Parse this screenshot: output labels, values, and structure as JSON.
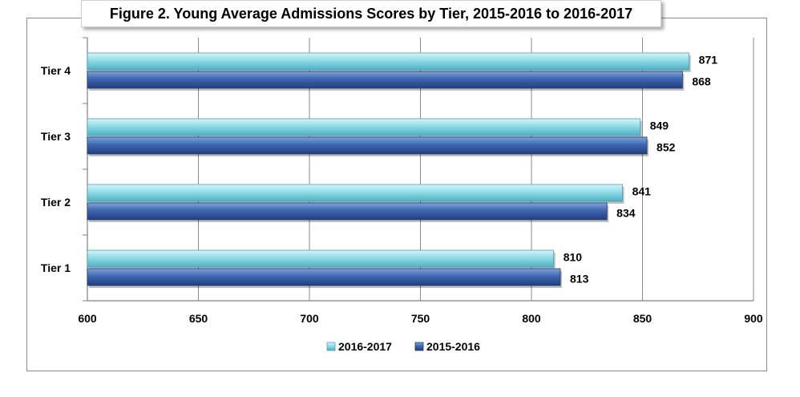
{
  "chart_data": {
    "type": "bar",
    "orientation": "horizontal",
    "title": "Figure 2. Young Average Admissions Scores by Tier, 2015-2016 to 2016-2017",
    "xlabel": "",
    "ylabel": "",
    "categories": [
      "Tier 4",
      "Tier 3",
      "Tier 2",
      "Tier 1"
    ],
    "xlim": [
      600,
      900
    ],
    "x_ticks": [
      "600",
      "650",
      "700",
      "750",
      "800",
      "850",
      "900"
    ],
    "series": [
      {
        "name": "2016-2017",
        "values": [
          871,
          849,
          841,
          810
        ],
        "color": "#7fd3e0"
      },
      {
        "name": "2015-2016",
        "values": [
          868,
          852,
          834,
          813
        ],
        "color": "#3a5fa8"
      }
    ],
    "grid": true,
    "legend_position": "bottom"
  }
}
